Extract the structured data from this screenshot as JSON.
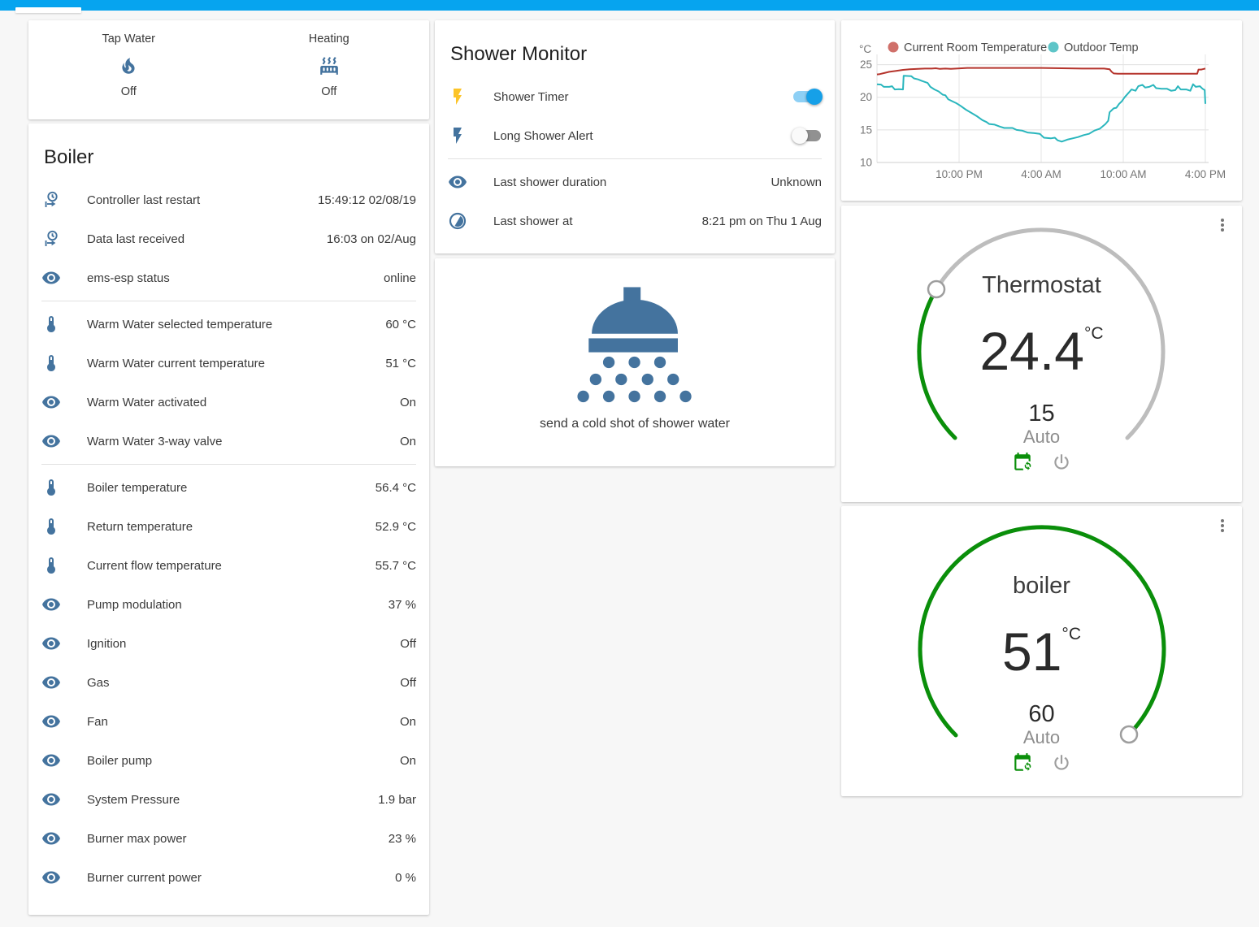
{
  "glance_card": {
    "items": [
      {
        "label": "Tap Water",
        "icon": "fire-icon",
        "state": "Off"
      },
      {
        "label": "Heating",
        "icon": "radiator-icon",
        "state": "Off"
      }
    ]
  },
  "boiler_card": {
    "title": "Boiler",
    "sections": [
      {
        "rows": [
          {
            "icon": "clock-out-icon",
            "label": "Controller last restart",
            "value": "15:49:12 02/08/19"
          },
          {
            "icon": "clock-out-icon",
            "label": "Data last received",
            "value": "16:03 on 02/Aug"
          },
          {
            "icon": "eye-icon",
            "label": "ems-esp status",
            "value": "online"
          }
        ]
      },
      {
        "rows": [
          {
            "icon": "thermometer-icon",
            "label": "Warm Water selected temperature",
            "value": "60 °C"
          },
          {
            "icon": "thermometer-icon",
            "label": "Warm Water current temperature",
            "value": "51 °C"
          },
          {
            "icon": "eye-icon",
            "label": "Warm Water activated",
            "value": "On"
          },
          {
            "icon": "eye-icon",
            "label": "Warm Water 3-way valve",
            "value": "On"
          }
        ]
      },
      {
        "rows": [
          {
            "icon": "thermometer-icon",
            "label": "Boiler temperature",
            "value": "56.4 °C"
          },
          {
            "icon": "thermometer-icon",
            "label": "Return temperature",
            "value": "52.9 °C"
          },
          {
            "icon": "thermometer-icon",
            "label": "Current flow temperature",
            "value": "55.7 °C"
          },
          {
            "icon": "eye-icon",
            "label": "Pump modulation",
            "value": "37 %"
          },
          {
            "icon": "eye-icon",
            "label": "Ignition",
            "value": "Off"
          },
          {
            "icon": "eye-icon",
            "label": "Gas",
            "value": "Off"
          },
          {
            "icon": "eye-icon",
            "label": "Fan",
            "value": "On"
          },
          {
            "icon": "eye-icon",
            "label": "Boiler pump",
            "value": "On"
          },
          {
            "icon": "eye-icon",
            "label": "System Pressure",
            "value": "1.9 bar"
          },
          {
            "icon": "eye-icon",
            "label": "Burner max power",
            "value": "23 %"
          },
          {
            "icon": "eye-icon",
            "label": "Burner current power",
            "value": "0 %"
          }
        ]
      }
    ]
  },
  "shower_card": {
    "title": "Shower Monitor",
    "toggle_rows": [
      {
        "icon": "flash-icon",
        "icon_color": "#fcc428",
        "label": "Shower Timer",
        "state": "on"
      },
      {
        "icon": "flash-icon",
        "icon_color": "#44739e",
        "label": "Long Shower Alert",
        "state": "off"
      }
    ],
    "info_rows": [
      {
        "icon": "eye-icon",
        "label": "Last shower duration",
        "value": "Unknown"
      },
      {
        "icon": "clock-half-icon",
        "label": "Last shower at",
        "value": "8:21 pm on Thu 1 Aug"
      }
    ]
  },
  "shower_action_card": {
    "label": "send a cold shot of shower water"
  },
  "chart_data": {
    "type": "line",
    "unit": "°C",
    "xlim": [
      0,
      24
    ],
    "ylim": [
      10,
      25.2
    ],
    "yticks": [
      10,
      15,
      20,
      25
    ],
    "xticks": [
      {
        "x": 6,
        "label": "10:00 PM"
      },
      {
        "x": 12,
        "label": "4:00 AM"
      },
      {
        "x": 18,
        "label": "10:00 AM"
      },
      {
        "x": 24,
        "label": "4:00 PM"
      }
    ],
    "legend_position": "top",
    "grid": true,
    "series": [
      {
        "name": "Current Room Temperature",
        "color": "#b5342c",
        "dot": "#d0706a",
        "points": [
          [
            0,
            23.5
          ],
          [
            0.2,
            23.55
          ],
          [
            0.5,
            23.7
          ],
          [
            0.9,
            23.9
          ],
          [
            1.4,
            24.05
          ],
          [
            1.9,
            24.2
          ],
          [
            2.4,
            24.3
          ],
          [
            3,
            24.35
          ],
          [
            3.5,
            24.4
          ],
          [
            4,
            24.4
          ],
          [
            4.3,
            24.45
          ],
          [
            4.6,
            24.35
          ],
          [
            5,
            24.4
          ],
          [
            5.4,
            24.35
          ],
          [
            5.8,
            24.4
          ],
          [
            6.2,
            24.45
          ],
          [
            6.6,
            24.5
          ],
          [
            8,
            24.5
          ],
          [
            10,
            24.5
          ],
          [
            12,
            24.5
          ],
          [
            13.5,
            24.45
          ],
          [
            15,
            24.4
          ],
          [
            16.6,
            24.4
          ],
          [
            17,
            24.3
          ],
          [
            17.15,
            23.9
          ],
          [
            17.3,
            23.65
          ],
          [
            17.6,
            23.6
          ],
          [
            19,
            23.6
          ],
          [
            21,
            23.6
          ],
          [
            23.4,
            23.6
          ],
          [
            23.5,
            24.25
          ],
          [
            23.7,
            24.25
          ],
          [
            23.8,
            24.3
          ],
          [
            24,
            24.4
          ]
        ]
      },
      {
        "name": "Outdoor Temp",
        "color": "#2ab6bd",
        "dot": "#5ec5c8",
        "points": [
          [
            0,
            22
          ],
          [
            0.3,
            21.95
          ],
          [
            0.5,
            21.6
          ],
          [
            0.9,
            21.6
          ],
          [
            1.1,
            21.7
          ],
          [
            1.3,
            21.2
          ],
          [
            1.6,
            21.25
          ],
          [
            1.9,
            21.2
          ],
          [
            1.95,
            23.3
          ],
          [
            2.5,
            23.25
          ],
          [
            2.7,
            22.9
          ],
          [
            3,
            22.75
          ],
          [
            3.3,
            22.5
          ],
          [
            3.7,
            22.2
          ],
          [
            3.9,
            21.6
          ],
          [
            4.2,
            21.2
          ],
          [
            4.5,
            20.9
          ],
          [
            4.8,
            20.4
          ],
          [
            5,
            20.3
          ],
          [
            5.2,
            19.7
          ],
          [
            5.5,
            19.4
          ],
          [
            5.8,
            19.1
          ],
          [
            6.1,
            18.7
          ],
          [
            6.5,
            18.1
          ],
          [
            6.9,
            17.6
          ],
          [
            7.3,
            17.1
          ],
          [
            7.7,
            16.5
          ],
          [
            8,
            16.2
          ],
          [
            8.2,
            15.9
          ],
          [
            8.6,
            15.8
          ],
          [
            9,
            15.5
          ],
          [
            9.3,
            15.3
          ],
          [
            9.9,
            15.3
          ],
          [
            10.2,
            15
          ],
          [
            10.6,
            14.9
          ],
          [
            11,
            14.6
          ],
          [
            11.5,
            14.5
          ],
          [
            11.9,
            14.4
          ],
          [
            12.2,
            13.8
          ],
          [
            12.7,
            13.7
          ],
          [
            13,
            13.8
          ],
          [
            13.2,
            13.4
          ],
          [
            13.5,
            13.2
          ],
          [
            13.9,
            13.5
          ],
          [
            14.3,
            13.7
          ],
          [
            14.7,
            13.9
          ],
          [
            15.1,
            14.2
          ],
          [
            15.5,
            14.4
          ],
          [
            15.9,
            14.9
          ],
          [
            16.3,
            15.2
          ],
          [
            16.7,
            15.9
          ],
          [
            16.9,
            16.4
          ],
          [
            17,
            17.7
          ],
          [
            17.3,
            18.3
          ],
          [
            17.5,
            18.4
          ],
          [
            17.7,
            19
          ],
          [
            17.9,
            19.4
          ],
          [
            18.1,
            20
          ],
          [
            18.4,
            20.7
          ],
          [
            18.6,
            21.2
          ],
          [
            18.9,
            21
          ],
          [
            19.1,
            21.7
          ],
          [
            19.4,
            21.9
          ],
          [
            19.6,
            21.5
          ],
          [
            19.9,
            21.6
          ],
          [
            20.2,
            21.9
          ],
          [
            20.4,
            21.4
          ],
          [
            20.8,
            21.3
          ],
          [
            21.2,
            21.3
          ],
          [
            21.5,
            21
          ],
          [
            21.8,
            21.1
          ],
          [
            22,
            21.7
          ],
          [
            22.2,
            21.2
          ],
          [
            22.6,
            21.2
          ],
          [
            22.9,
            21
          ],
          [
            23.1,
            22
          ],
          [
            23.3,
            21.6
          ],
          [
            23.6,
            21.7
          ],
          [
            23.8,
            21.3
          ],
          [
            23.95,
            21.1
          ],
          [
            24,
            19
          ]
        ]
      }
    ]
  },
  "thermostat_card": {
    "title": "Thermostat",
    "value": "24.4",
    "unit": "°C",
    "target": "15",
    "mode": "Auto"
  },
  "boiler_gauge_card": {
    "title": "boiler",
    "value": "51",
    "unit": "°C",
    "target": "60",
    "mode": "Auto"
  },
  "colors": {
    "accent": "#06a4ef",
    "icon": "#44739e",
    "gauge_green": "#0a8f0a"
  }
}
